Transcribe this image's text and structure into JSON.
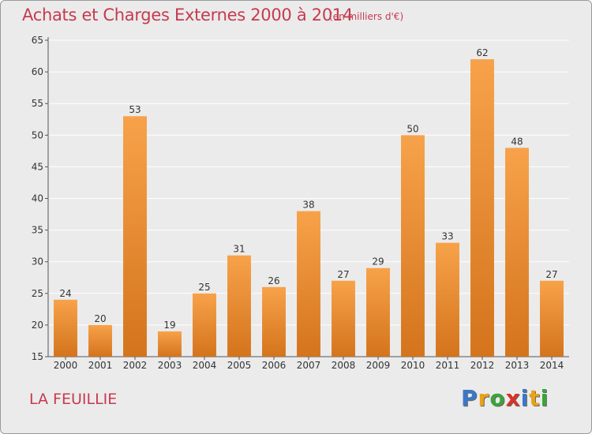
{
  "header": {
    "title": "Achats et Charges Externes 2000 à 2014",
    "unit": "(en milliers d'€)"
  },
  "footer": {
    "commune": "LA FEUILLIE",
    "brand": [
      "P",
      "r",
      "o",
      "x",
      "i",
      "t",
      "i"
    ],
    "brand_colors": [
      "#3a78c8",
      "#e8a317",
      "#3aa53a",
      "#d8322a",
      "#3a78c8",
      "#e8a317",
      "#3aa53a"
    ]
  },
  "colors": {
    "bar_light": "#f7a24a",
    "bar_dark": "#d4741c",
    "text_accent": "#c63a4e",
    "grid": "#ffffff",
    "background": "#ebebeb"
  },
  "chart_data": {
    "type": "bar",
    "categories": [
      "2000",
      "2001",
      "2002",
      "2003",
      "2004",
      "2005",
      "2006",
      "2007",
      "2008",
      "2009",
      "2010",
      "2011",
      "2012",
      "2013",
      "2014"
    ],
    "values": [
      24,
      20,
      53,
      19,
      25,
      31,
      26,
      38,
      27,
      29,
      50,
      33,
      62,
      48,
      27
    ],
    "title": "Achats et Charges Externes 2000 à 2014",
    "xlabel": "",
    "ylabel": "",
    "ylim": [
      15,
      65
    ],
    "yticks": [
      15,
      20,
      25,
      30,
      35,
      40,
      45,
      50,
      55,
      60,
      65
    ],
    "grid": true,
    "data_labels": true
  }
}
